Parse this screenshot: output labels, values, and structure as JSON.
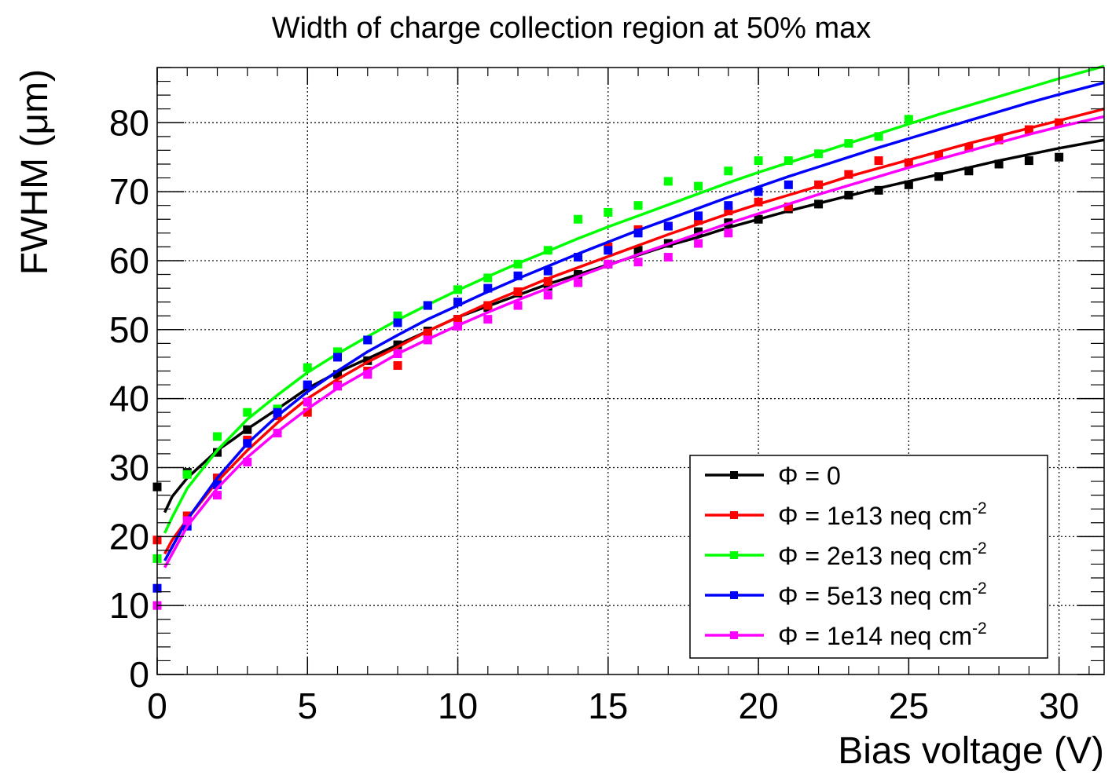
{
  "chart_data": {
    "type": "scatter",
    "title": "Width of charge collection region at 50% max",
    "xlabel": "Bias voltage (V)",
    "ylabel": "FWHM (μm)",
    "xlim": [
      0,
      31.5
    ],
    "ylim": [
      0,
      88
    ],
    "xticks": [
      0,
      5,
      10,
      15,
      20,
      25,
      30
    ],
    "xtick_labels": [
      "0",
      "5",
      "10",
      "15",
      "20",
      "25",
      "30"
    ],
    "yticks": [
      0,
      10,
      20,
      30,
      40,
      50,
      60,
      70,
      80
    ],
    "ytick_labels": [
      "0",
      "10",
      "20",
      "30",
      "40",
      "50",
      "60",
      "70",
      "80"
    ],
    "grid": true,
    "legend_position": "bottom-right",
    "series": [
      {
        "name": "Φ = 0",
        "sup": "",
        "color": "#000000",
        "x": [
          0,
          1,
          2,
          3,
          4,
          5,
          6,
          7,
          8,
          9,
          10,
          11,
          12,
          13,
          14,
          15,
          16,
          17,
          18,
          19,
          20,
          21,
          22,
          23,
          24,
          25,
          26,
          27,
          28,
          29,
          30
        ],
        "y": [
          27.2,
          29.3,
          32.2,
          35.5,
          38.2,
          41.8,
          43.5,
          45.5,
          47.8,
          49.8,
          51.5,
          53.2,
          55.3,
          56.3,
          58.0,
          59.5,
          61.5,
          62.5,
          64.2,
          65.5,
          66.0,
          67.5,
          68.2,
          69.5,
          70.2,
          71.0,
          72.2,
          73.0,
          74.0,
          74.5,
          75.0
        ],
        "fit": [
          [
            0.25,
            23.5
          ],
          [
            0.5,
            25.8
          ],
          [
            1,
            28.5
          ],
          [
            1.5,
            30.5
          ],
          [
            2,
            32.5
          ],
          [
            2.5,
            34.0
          ],
          [
            3,
            35.6
          ],
          [
            4,
            38.5
          ],
          [
            5,
            41.5
          ],
          [
            6,
            43.8
          ],
          [
            7,
            45.8
          ],
          [
            8,
            47.8
          ],
          [
            9,
            49.8
          ],
          [
            10,
            51.8
          ],
          [
            11,
            53.4
          ],
          [
            12,
            55.0
          ],
          [
            13,
            56.6
          ],
          [
            14,
            58.0
          ],
          [
            15,
            59.4
          ],
          [
            16,
            60.8
          ],
          [
            17,
            62.2
          ],
          [
            18,
            63.4
          ],
          [
            19,
            64.8
          ],
          [
            20,
            66.0
          ],
          [
            21,
            67.2
          ],
          [
            22,
            68.3
          ],
          [
            23,
            69.4
          ],
          [
            24,
            70.5
          ],
          [
            25,
            71.5
          ],
          [
            26,
            72.5
          ],
          [
            27,
            73.5
          ],
          [
            28,
            74.5
          ],
          [
            29,
            75.4
          ],
          [
            30,
            76.3
          ],
          [
            31.5,
            77.5
          ]
        ]
      },
      {
        "name": "Φ = 1e13 neq cm",
        "sup": "-2",
        "color": "#ff0000",
        "x": [
          0,
          1,
          2,
          3,
          4,
          5,
          6,
          7,
          8,
          9,
          10,
          11,
          12,
          13,
          14,
          15,
          16,
          17,
          18,
          19,
          20,
          21,
          22,
          23,
          24,
          25,
          26,
          27,
          28,
          29,
          30
        ],
        "y": [
          19.5,
          23.0,
          28.5,
          34.0,
          37.5,
          38.0,
          42.0,
          44.0,
          44.8,
          49.5,
          51.5,
          53.5,
          55.5,
          57.0,
          60.5,
          62.0,
          64.5,
          65.0,
          65.8,
          67.2,
          68.5,
          67.8,
          71.0,
          72.5,
          74.5,
          74.2,
          75.3,
          76.4,
          77.5,
          79.0,
          80.0
        ],
        "fit": [
          [
            0.25,
            17.5
          ],
          [
            0.5,
            19.5
          ],
          [
            1,
            22.5
          ],
          [
            2,
            28.0
          ],
          [
            3,
            32.5
          ],
          [
            4,
            36.5
          ],
          [
            5,
            40.0
          ],
          [
            6,
            42.8
          ],
          [
            7,
            45.3
          ],
          [
            8,
            47.5
          ],
          [
            9,
            49.8
          ],
          [
            10,
            51.8
          ],
          [
            11,
            53.8
          ],
          [
            12,
            55.6
          ],
          [
            13,
            57.4
          ],
          [
            14,
            59.0
          ],
          [
            15,
            60.6
          ],
          [
            16,
            62.2
          ],
          [
            17,
            63.8
          ],
          [
            18,
            65.3
          ],
          [
            19,
            66.8
          ],
          [
            20,
            68.2
          ],
          [
            21,
            69.5
          ],
          [
            22,
            70.8
          ],
          [
            23,
            72.2
          ],
          [
            24,
            73.4
          ],
          [
            25,
            74.6
          ],
          [
            26,
            75.8
          ],
          [
            27,
            77.0
          ],
          [
            28,
            78.1
          ],
          [
            29,
            79.2
          ],
          [
            30,
            80.3
          ],
          [
            31.5,
            82.0
          ]
        ]
      },
      {
        "name": "Φ = 2e13 neq cm",
        "sup": "-2",
        "color": "#00ff00",
        "x": [
          0,
          1,
          2,
          3,
          4,
          5,
          6,
          7,
          8,
          9,
          10,
          11,
          12,
          13,
          14,
          15,
          16,
          17,
          18,
          19,
          20,
          21,
          22,
          23,
          24,
          25
        ],
        "y": [
          16.8,
          29.0,
          34.5,
          38.0,
          38.5,
          44.5,
          46.8,
          48.5,
          52.0,
          53.5,
          55.8,
          57.5,
          59.5,
          61.5,
          66.0,
          67.0,
          68.0,
          71.5,
          70.8,
          73.0,
          74.5,
          74.5,
          75.5,
          77.0,
          78.0,
          80.5
        ],
        "fit": [
          [
            0.25,
            20.5
          ],
          [
            0.5,
            22.8
          ],
          [
            1,
            27.0
          ],
          [
            2,
            32.5
          ],
          [
            3,
            37.0
          ],
          [
            4,
            40.5
          ],
          [
            5,
            43.8
          ],
          [
            6,
            46.5
          ],
          [
            7,
            49.0
          ],
          [
            8,
            51.4
          ],
          [
            9,
            53.6
          ],
          [
            10,
            55.7
          ],
          [
            11,
            57.7
          ],
          [
            12,
            59.6
          ],
          [
            13,
            61.4
          ],
          [
            14,
            63.2
          ],
          [
            15,
            64.9
          ],
          [
            16,
            66.5
          ],
          [
            17,
            68.1
          ],
          [
            18,
            69.7
          ],
          [
            19,
            71.3
          ],
          [
            20,
            72.8
          ],
          [
            21,
            74.2
          ],
          [
            22,
            75.6
          ],
          [
            23,
            77.0
          ],
          [
            24,
            78.4
          ],
          [
            25,
            79.8
          ],
          [
            26,
            81.2
          ],
          [
            27,
            82.5
          ],
          [
            28,
            83.8
          ],
          [
            29,
            85.1
          ],
          [
            30,
            86.4
          ],
          [
            31.5,
            88.2
          ]
        ]
      },
      {
        "name": "Φ = 5e13 neq cm",
        "sup": "-2",
        "color": "#0000ff",
        "x": [
          0,
          1,
          2,
          3,
          4,
          5,
          6,
          7,
          8,
          9,
          10,
          11,
          12,
          13,
          14,
          15,
          16,
          17,
          18,
          19,
          20,
          21
        ],
        "y": [
          12.5,
          21.5,
          27.5,
          33.5,
          38.0,
          42.0,
          46.0,
          48.5,
          51.0,
          53.5,
          54.0,
          56.0,
          57.8,
          58.5,
          60.5,
          61.5,
          64.0,
          65.0,
          66.5,
          68.0,
          70.0,
          71.0
        ],
        "fit": [
          [
            0.25,
            16.5
          ],
          [
            0.5,
            18.5
          ],
          [
            1,
            22.5
          ],
          [
            2,
            28.5
          ],
          [
            3,
            33.5
          ],
          [
            4,
            37.5
          ],
          [
            5,
            41.0
          ],
          [
            6,
            44.0
          ],
          [
            7,
            46.8
          ],
          [
            8,
            49.2
          ],
          [
            9,
            51.5
          ],
          [
            10,
            53.5
          ],
          [
            11,
            55.5
          ],
          [
            12,
            57.4
          ],
          [
            13,
            59.2
          ],
          [
            14,
            61.0
          ],
          [
            15,
            62.7
          ],
          [
            16,
            64.4
          ],
          [
            17,
            66.0
          ],
          [
            18,
            67.6
          ],
          [
            19,
            69.2
          ],
          [
            20,
            70.7
          ],
          [
            21,
            72.2
          ],
          [
            22,
            73.6
          ],
          [
            23,
            75.0
          ],
          [
            24,
            76.4
          ],
          [
            25,
            77.7
          ],
          [
            26,
            79.0
          ],
          [
            27,
            80.3
          ],
          [
            28,
            81.6
          ],
          [
            29,
            82.9
          ],
          [
            30,
            84.1
          ],
          [
            31.5,
            85.8
          ]
        ]
      },
      {
        "name": "Φ = 1e14 neq cm",
        "sup": "-2",
        "color": "#ff00ff",
        "x": [
          0,
          1,
          2,
          3,
          4,
          5,
          6,
          7,
          8,
          9,
          10,
          11,
          12,
          13,
          14,
          15,
          16,
          17,
          18,
          19
        ],
        "y": [
          10.0,
          22.3,
          26.0,
          30.8,
          35.0,
          39.5,
          41.8,
          43.5,
          46.5,
          48.5,
          50.5,
          51.5,
          53.5,
          55.0,
          56.8,
          59.5,
          59.8,
          60.5,
          62.5,
          64.0
        ],
        "fit": [
          [
            0.25,
            15.5
          ],
          [
            0.5,
            17.5
          ],
          [
            1,
            21.5
          ],
          [
            2,
            27.0
          ],
          [
            3,
            31.5
          ],
          [
            4,
            35.2
          ],
          [
            5,
            38.5
          ],
          [
            6,
            41.5
          ],
          [
            7,
            44.0
          ],
          [
            8,
            46.5
          ],
          [
            9,
            48.6
          ],
          [
            10,
            50.6
          ],
          [
            11,
            52.5
          ],
          [
            12,
            54.3
          ],
          [
            13,
            56.0
          ],
          [
            14,
            57.7
          ],
          [
            15,
            59.3
          ],
          [
            16,
            60.9
          ],
          [
            17,
            62.4
          ],
          [
            18,
            63.9
          ],
          [
            19,
            65.4
          ],
          [
            20,
            66.8
          ],
          [
            21,
            68.2
          ],
          [
            22,
            69.6
          ],
          [
            23,
            70.9
          ],
          [
            24,
            72.2
          ],
          [
            25,
            73.5
          ],
          [
            26,
            74.7
          ],
          [
            27,
            75.9
          ],
          [
            28,
            77.1
          ],
          [
            29,
            78.3
          ],
          [
            30,
            79.4
          ],
          [
            31.5,
            80.9
          ]
        ]
      }
    ]
  }
}
